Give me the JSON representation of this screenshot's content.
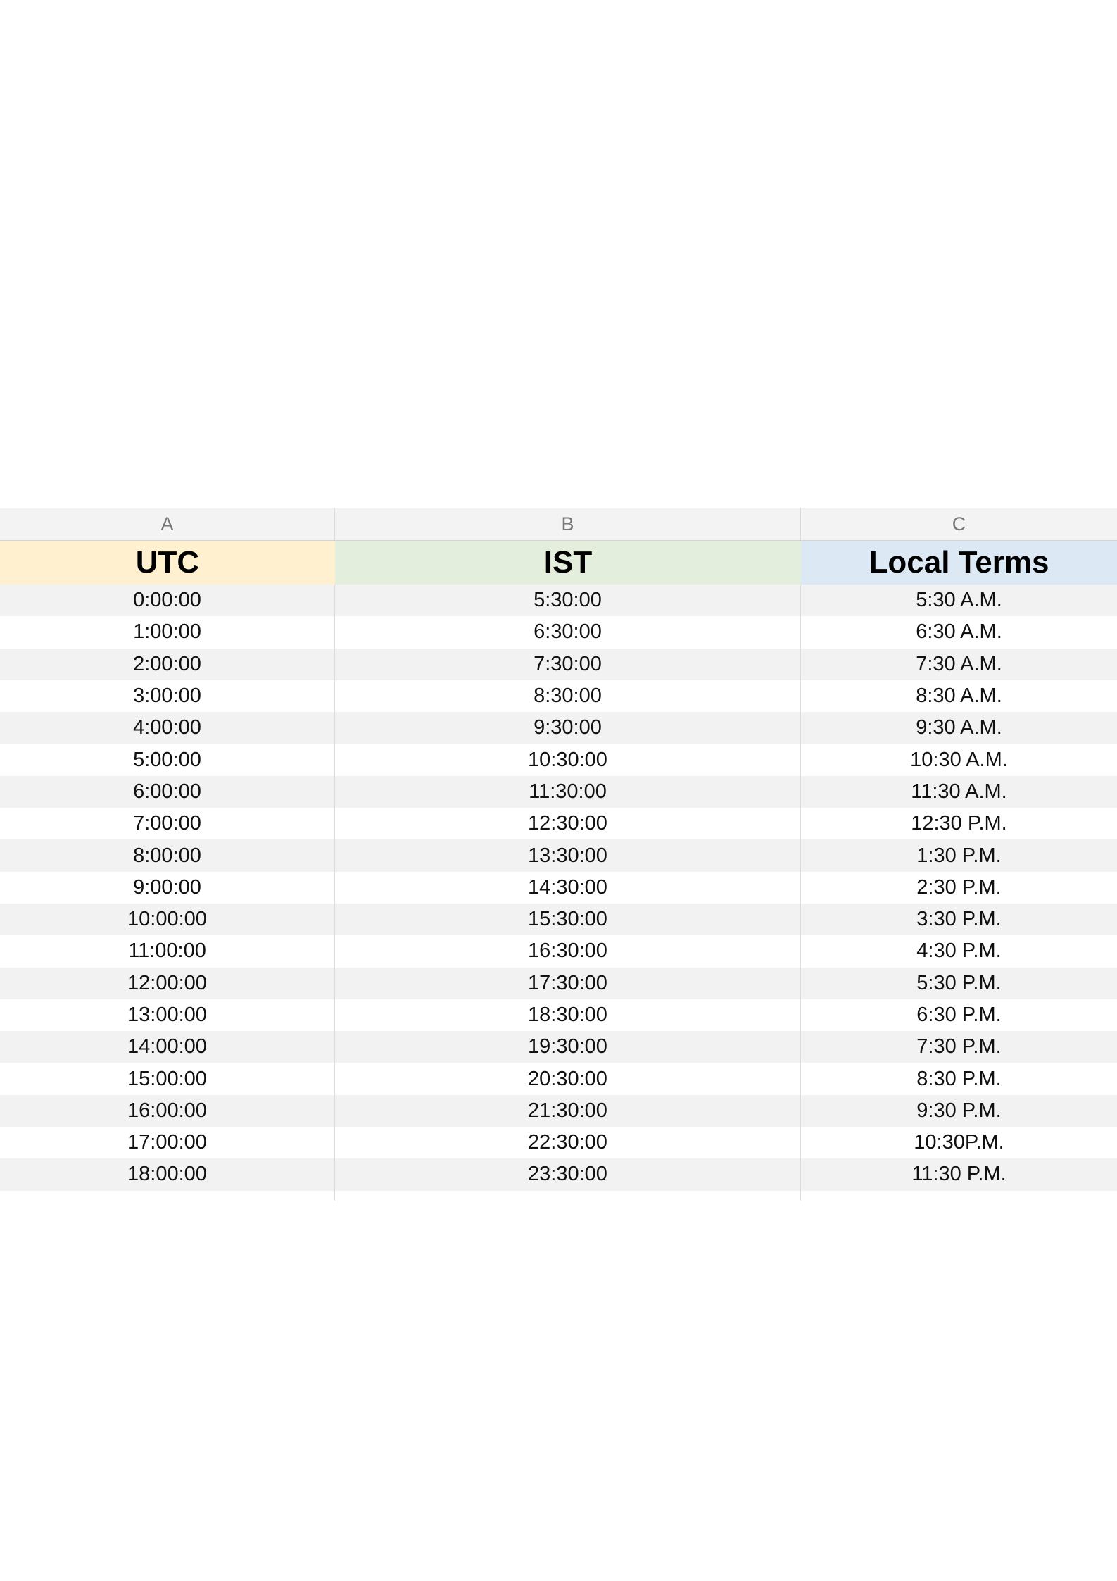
{
  "columns": {
    "letters": [
      "A",
      "B",
      "C"
    ],
    "headers": [
      "UTC",
      "IST",
      "Local Terms"
    ],
    "header_colors": [
      "#fff0cf",
      "#e3efdc",
      "#dce9f5"
    ]
  },
  "rows": [
    [
      "0:00:00",
      "5:30:00",
      "5:30 A.M."
    ],
    [
      "1:00:00",
      "6:30:00",
      "6:30 A.M."
    ],
    [
      "2:00:00",
      "7:30:00",
      "7:30 A.M."
    ],
    [
      "3:00:00",
      "8:30:00",
      "8:30 A.M."
    ],
    [
      "4:00:00",
      "9:30:00",
      "9:30 A.M."
    ],
    [
      "5:00:00",
      "10:30:00",
      "10:30 A.M."
    ],
    [
      "6:00:00",
      "11:30:00",
      "11:30 A.M."
    ],
    [
      "7:00:00",
      "12:30:00",
      "12:30 P.M."
    ],
    [
      "8:00:00",
      "13:30:00",
      "1:30 P.M."
    ],
    [
      "9:00:00",
      "14:30:00",
      "2:30 P.M."
    ],
    [
      "10:00:00",
      "15:30:00",
      "3:30 P.M."
    ],
    [
      "11:00:00",
      "16:30:00",
      "4:30 P.M."
    ],
    [
      "12:00:00",
      "17:30:00",
      "5:30 P.M."
    ],
    [
      "13:00:00",
      "18:30:00",
      "6:30 P.M."
    ],
    [
      "14:00:00",
      "19:30:00",
      "7:30 P.M."
    ],
    [
      "15:00:00",
      "20:30:00",
      "8:30 P.M."
    ],
    [
      "16:00:00",
      "21:30:00",
      "9:30 P.M."
    ],
    [
      "17:00:00",
      "22:30:00",
      "10:30P.M."
    ],
    [
      "18:00:00",
      "23:30:00",
      "11:30 P.M."
    ]
  ]
}
